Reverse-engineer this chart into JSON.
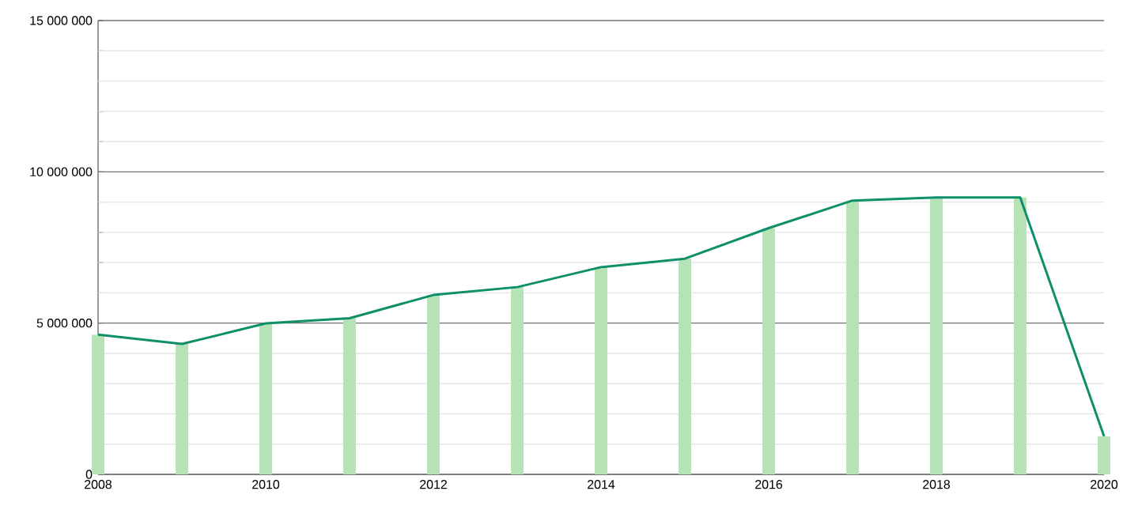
{
  "chart_data": {
    "type": "bar",
    "x": [
      2008,
      2009,
      2010,
      2011,
      2012,
      2013,
      2014,
      2015,
      2016,
      2017,
      2018,
      2019,
      2020
    ],
    "series": [
      {
        "color": "#b5e3b5",
        "values": [
          4620000,
          4310000,
          4990000,
          5160000,
          5930000,
          6190000,
          6850000,
          7130000,
          8140000,
          9050000,
          9150000,
          9150000,
          1260000
        ]
      },
      {
        "type": "line",
        "color": "#0e8f6a",
        "values": [
          4620000,
          4310000,
          4990000,
          5160000,
          5930000,
          6190000,
          6850000,
          7130000,
          8140000,
          9050000,
          9150000,
          9150000,
          1260000
        ]
      }
    ],
    "xlim": [
      2008,
      2020
    ],
    "xticks": [
      2008,
      {
        "value": 2009,
        "label": null
      },
      2010,
      {
        "value": 2011,
        "label": null
      },
      2012,
      {
        "value": 2013,
        "label": null
      },
      2014,
      {
        "value": 2015,
        "label": null
      },
      2016,
      {
        "value": 2017,
        "label": null
      },
      2018,
      {
        "value": 2019,
        "label": null
      },
      2020
    ],
    "ylim": [
      0,
      15000000
    ],
    "yticks": [
      {
        "value": 0,
        "label": "0"
      },
      {
        "value": 1000000,
        "label": null
      },
      {
        "value": 2000000,
        "label": null
      },
      {
        "value": 3000000,
        "label": null
      },
      {
        "value": 4000000,
        "label": null
      },
      {
        "value": 5000000,
        "label": "5 000 000"
      },
      {
        "value": 6000000,
        "label": null
      },
      {
        "value": 7000000,
        "label": null
      },
      {
        "value": 8000000,
        "label": null
      },
      {
        "value": 9000000,
        "label": null
      },
      {
        "value": 10000000,
        "label": "10 000 000"
      },
      {
        "value": 11000000,
        "label": null
      },
      {
        "value": 12000000,
        "label": null
      },
      {
        "value": 13000000,
        "label": null
      },
      {
        "value": 14000000,
        "label": null
      },
      {
        "value": 15000000,
        "label": "15 000 000"
      }
    ],
    "grid": "y"
  }
}
